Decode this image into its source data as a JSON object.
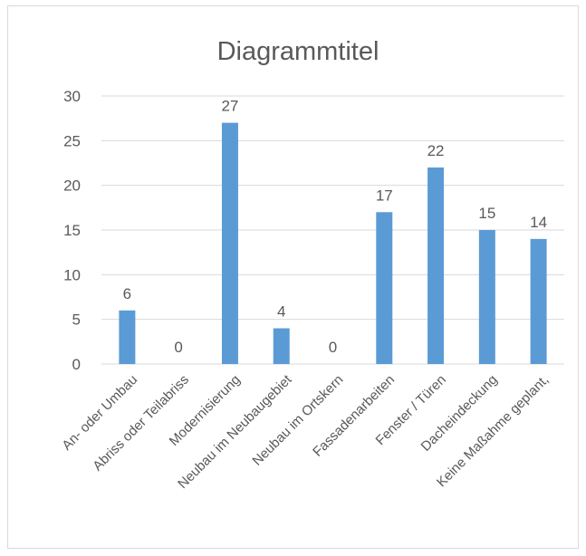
{
  "chart_data": {
    "type": "bar",
    "title": "Diagrammtitel",
    "categories": [
      "An- oder Umbau",
      "Abriss oder Teilabriss",
      "Modernisierung",
      "Neubau im Neubaugebiet",
      "Neubau im Ortskern",
      "Fassadenarbeiten",
      "Fenster / Türen",
      "Dacheindeckung",
      "Keine Maßahme geplant,"
    ],
    "values": [
      6,
      0,
      27,
      4,
      0,
      17,
      22,
      15,
      14
    ],
    "ylim": [
      0,
      30
    ],
    "yticks": [
      0,
      5,
      10,
      15,
      20,
      25,
      30
    ],
    "xlabel": "",
    "ylabel": "",
    "grid": true,
    "legend": "none",
    "bar_color": "#5b9bd5",
    "grid_color": "#d9d9d9",
    "text_color": "#595959"
  }
}
